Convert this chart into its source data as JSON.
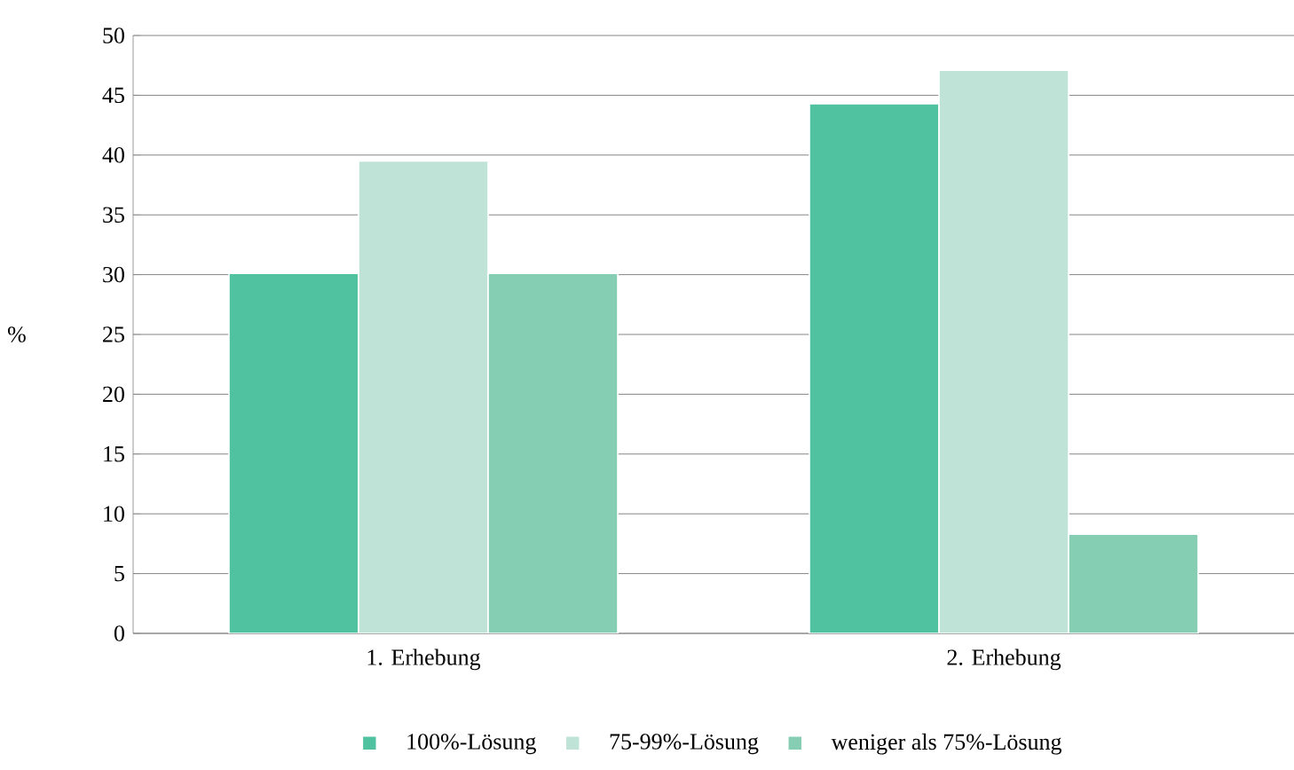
{
  "chart_data": {
    "type": "bar",
    "ylabel": "%",
    "categories": [
      "1. Erhebung",
      "2. Erhebung"
    ],
    "series": [
      {
        "name": "100%-Lösung",
        "color": "#50c2a0",
        "values": [
          30.1,
          44.3
        ]
      },
      {
        "name": "75-99%-Lösung",
        "color": "#c0e3d8",
        "values": [
          39.5,
          47.1
        ]
      },
      {
        "name": "weniger als 75%-Lösung",
        "color": "#85cdb3",
        "values": [
          30.1,
          8.3
        ]
      }
    ],
    "ylim": [
      0,
      50
    ],
    "yticks": [
      0,
      5,
      10,
      15,
      20,
      25,
      30,
      35,
      40,
      45,
      50
    ],
    "grid": "y",
    "legend": "bottom"
  }
}
